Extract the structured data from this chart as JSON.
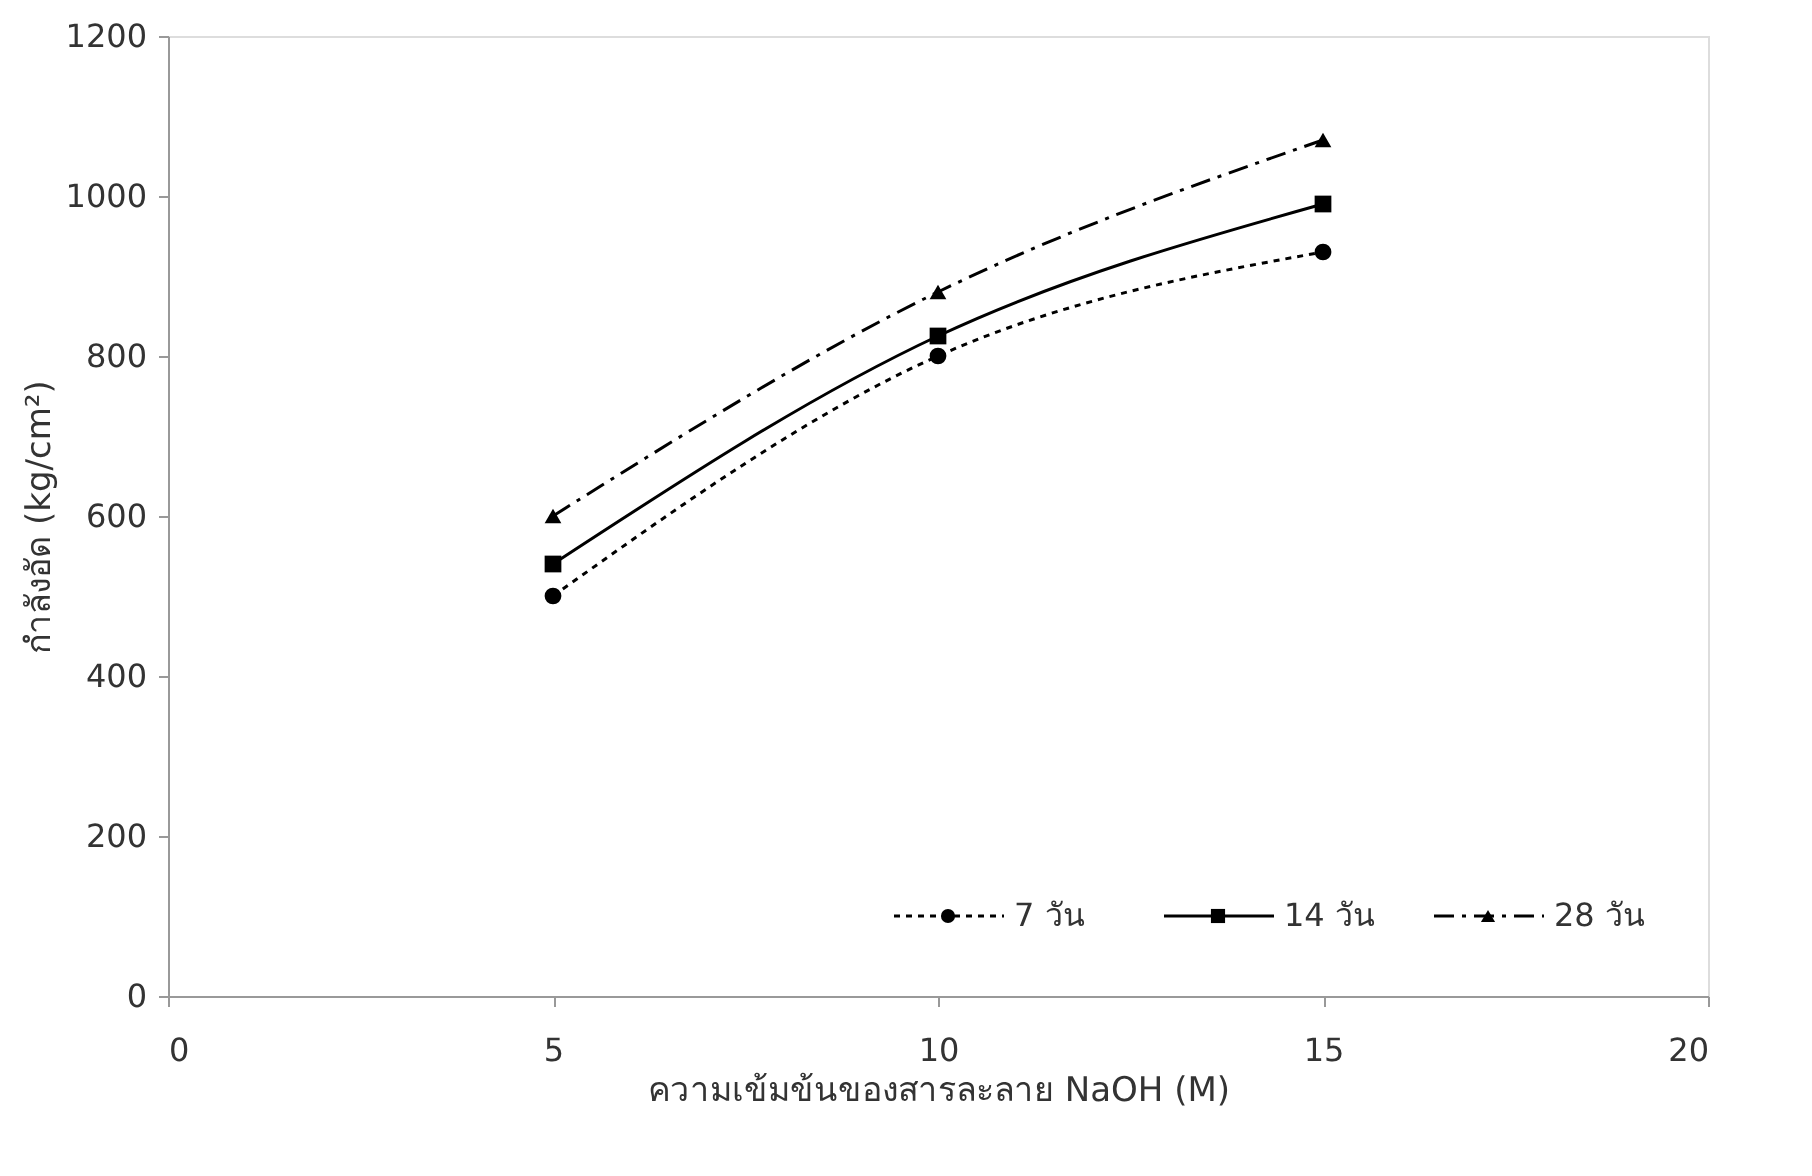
{
  "chart_data": {
    "type": "line",
    "xlabel": "ความเข้มข้นของสารละลาย NaOH (M)",
    "ylabel": "กำลังอัด (kg/cm²)",
    "x": [
      5,
      10,
      15
    ],
    "series": [
      {
        "name": "7 วัน",
        "color": "#000000",
        "values": [
          500,
          800,
          930
        ],
        "marker": "circle",
        "line_style": "dotted"
      },
      {
        "name": "14 วัน",
        "color": "#000000",
        "values": [
          540,
          825,
          990
        ],
        "marker": "square",
        "line_style": "solid"
      },
      {
        "name": "28 วัน",
        "color": "#000000",
        "values": [
          600,
          880,
          1070
        ],
        "marker": "triangle",
        "line_style": "dashed"
      }
    ],
    "xlim": [
      0,
      20
    ],
    "xticks": [
      0,
      5,
      10,
      15,
      20
    ],
    "ylim": [
      0,
      1200
    ],
    "yticks": [
      0,
      200,
      400,
      600,
      800,
      1000,
      1200
    ],
    "grid": false,
    "legend": "bottom right"
  }
}
